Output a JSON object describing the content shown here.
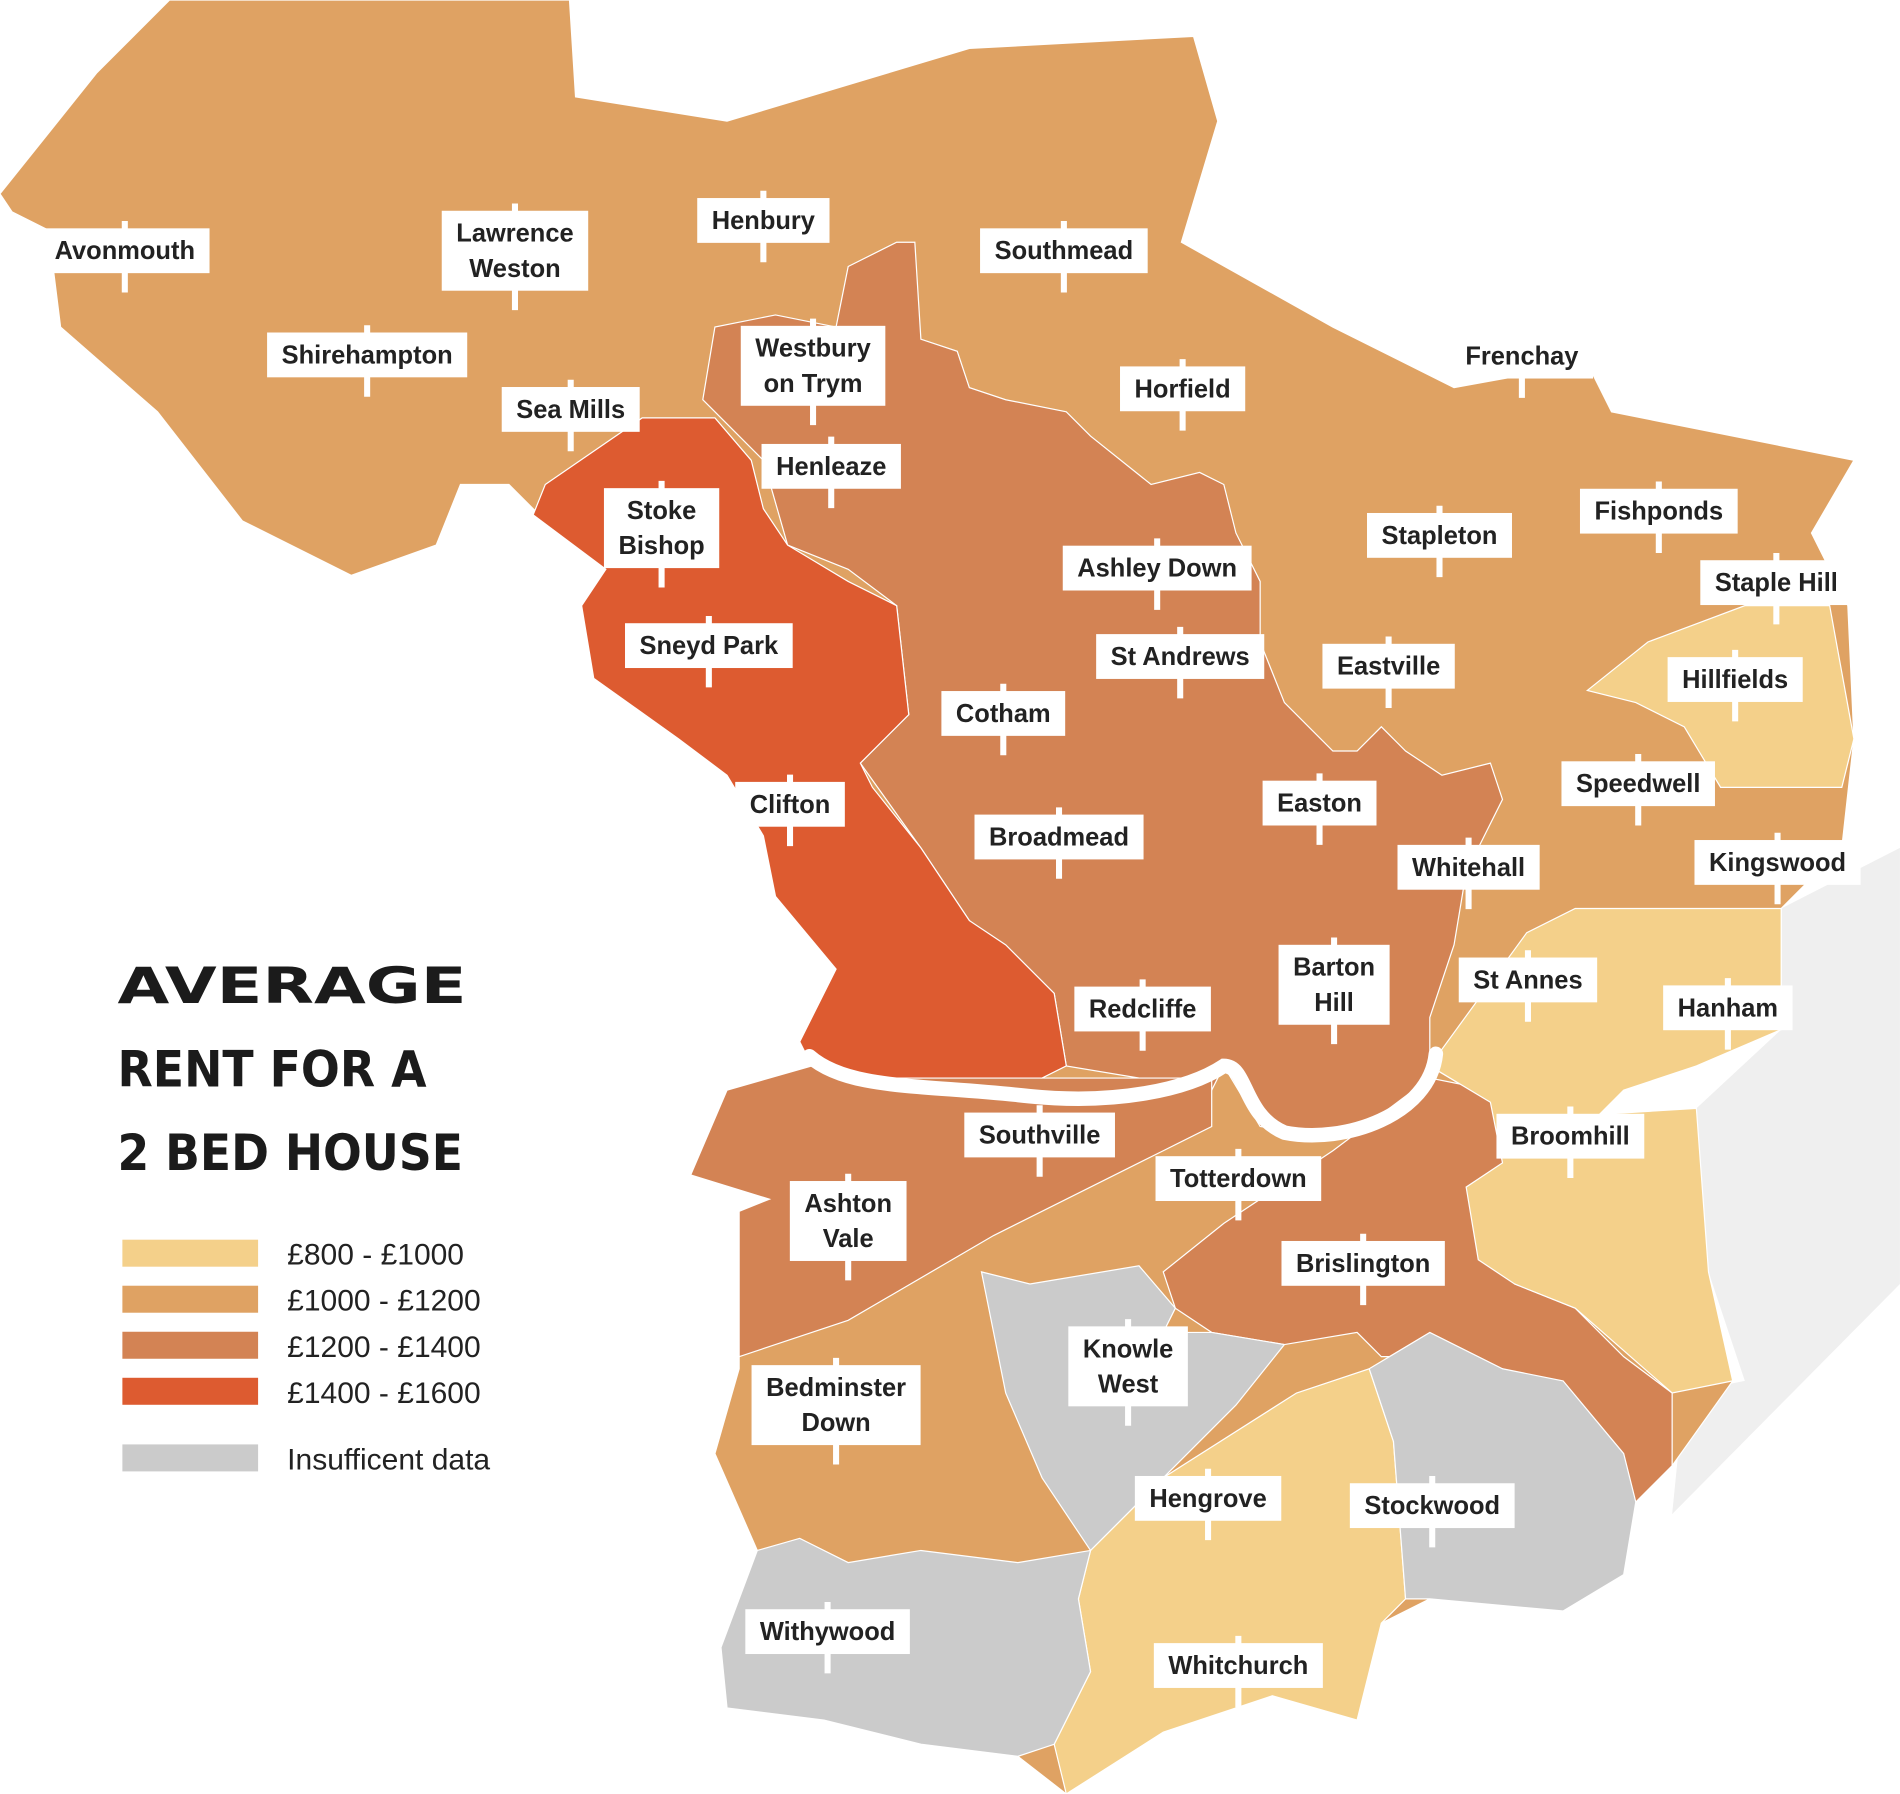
{
  "title": [
    "AVERAGE",
    "RENT FOR A",
    "2 BED HOUSE"
  ],
  "legend": [
    {
      "label": "£800 - £1000",
      "color": "#f4d08a"
    },
    {
      "label": "£1000 - £1200",
      "color": "#dfa263"
    },
    {
      "label": "£1200 - £1400",
      "color": "#d38354"
    },
    {
      "label": "£1400 - £1600",
      "color": "#dd5b30"
    },
    {
      "label": "Insufficent data",
      "color": "#cbcbcb"
    }
  ],
  "labels": [
    [
      "Avonmouth"
    ],
    [
      "Lawrence",
      "Weston"
    ],
    [
      "Henbury"
    ],
    [
      "Southmead"
    ],
    [
      "Shirehampton"
    ],
    [
      "Westbury",
      "on Trym"
    ],
    [
      "Sea Mills"
    ],
    [
      "Horfield"
    ],
    [
      "Frenchay"
    ],
    [
      "Henleaze"
    ],
    [
      "Stoke",
      "Bishop"
    ],
    [
      "Stapleton"
    ],
    [
      "Fishponds"
    ],
    [
      "Ashley Down"
    ],
    [
      "Staple Hill"
    ],
    [
      "Sneyd Park"
    ],
    [
      "St Andrews"
    ],
    [
      "Eastville"
    ],
    [
      "Hillfields"
    ],
    [
      "Cotham"
    ],
    [
      "Speedwell"
    ],
    [
      "Clifton"
    ],
    [
      "Easton"
    ],
    [
      "Broadmead"
    ],
    [
      "Whitehall"
    ],
    [
      "Kingswood"
    ],
    [
      "Barton",
      "Hill"
    ],
    [
      "St Annes"
    ],
    [
      "Redcliffe"
    ],
    [
      "Hanham"
    ],
    [
      "Southville"
    ],
    [
      "Broomhill"
    ],
    [
      "Totterdown"
    ],
    [
      "Ashton",
      "Vale"
    ],
    [
      "Brislington"
    ],
    [
      "Knowle",
      "West"
    ],
    [
      "Bedminster",
      "Down"
    ],
    [
      "Hengrove"
    ],
    [
      "Stockwood"
    ],
    [
      "Withywood"
    ],
    [
      "Whitchurch"
    ]
  ]
}
